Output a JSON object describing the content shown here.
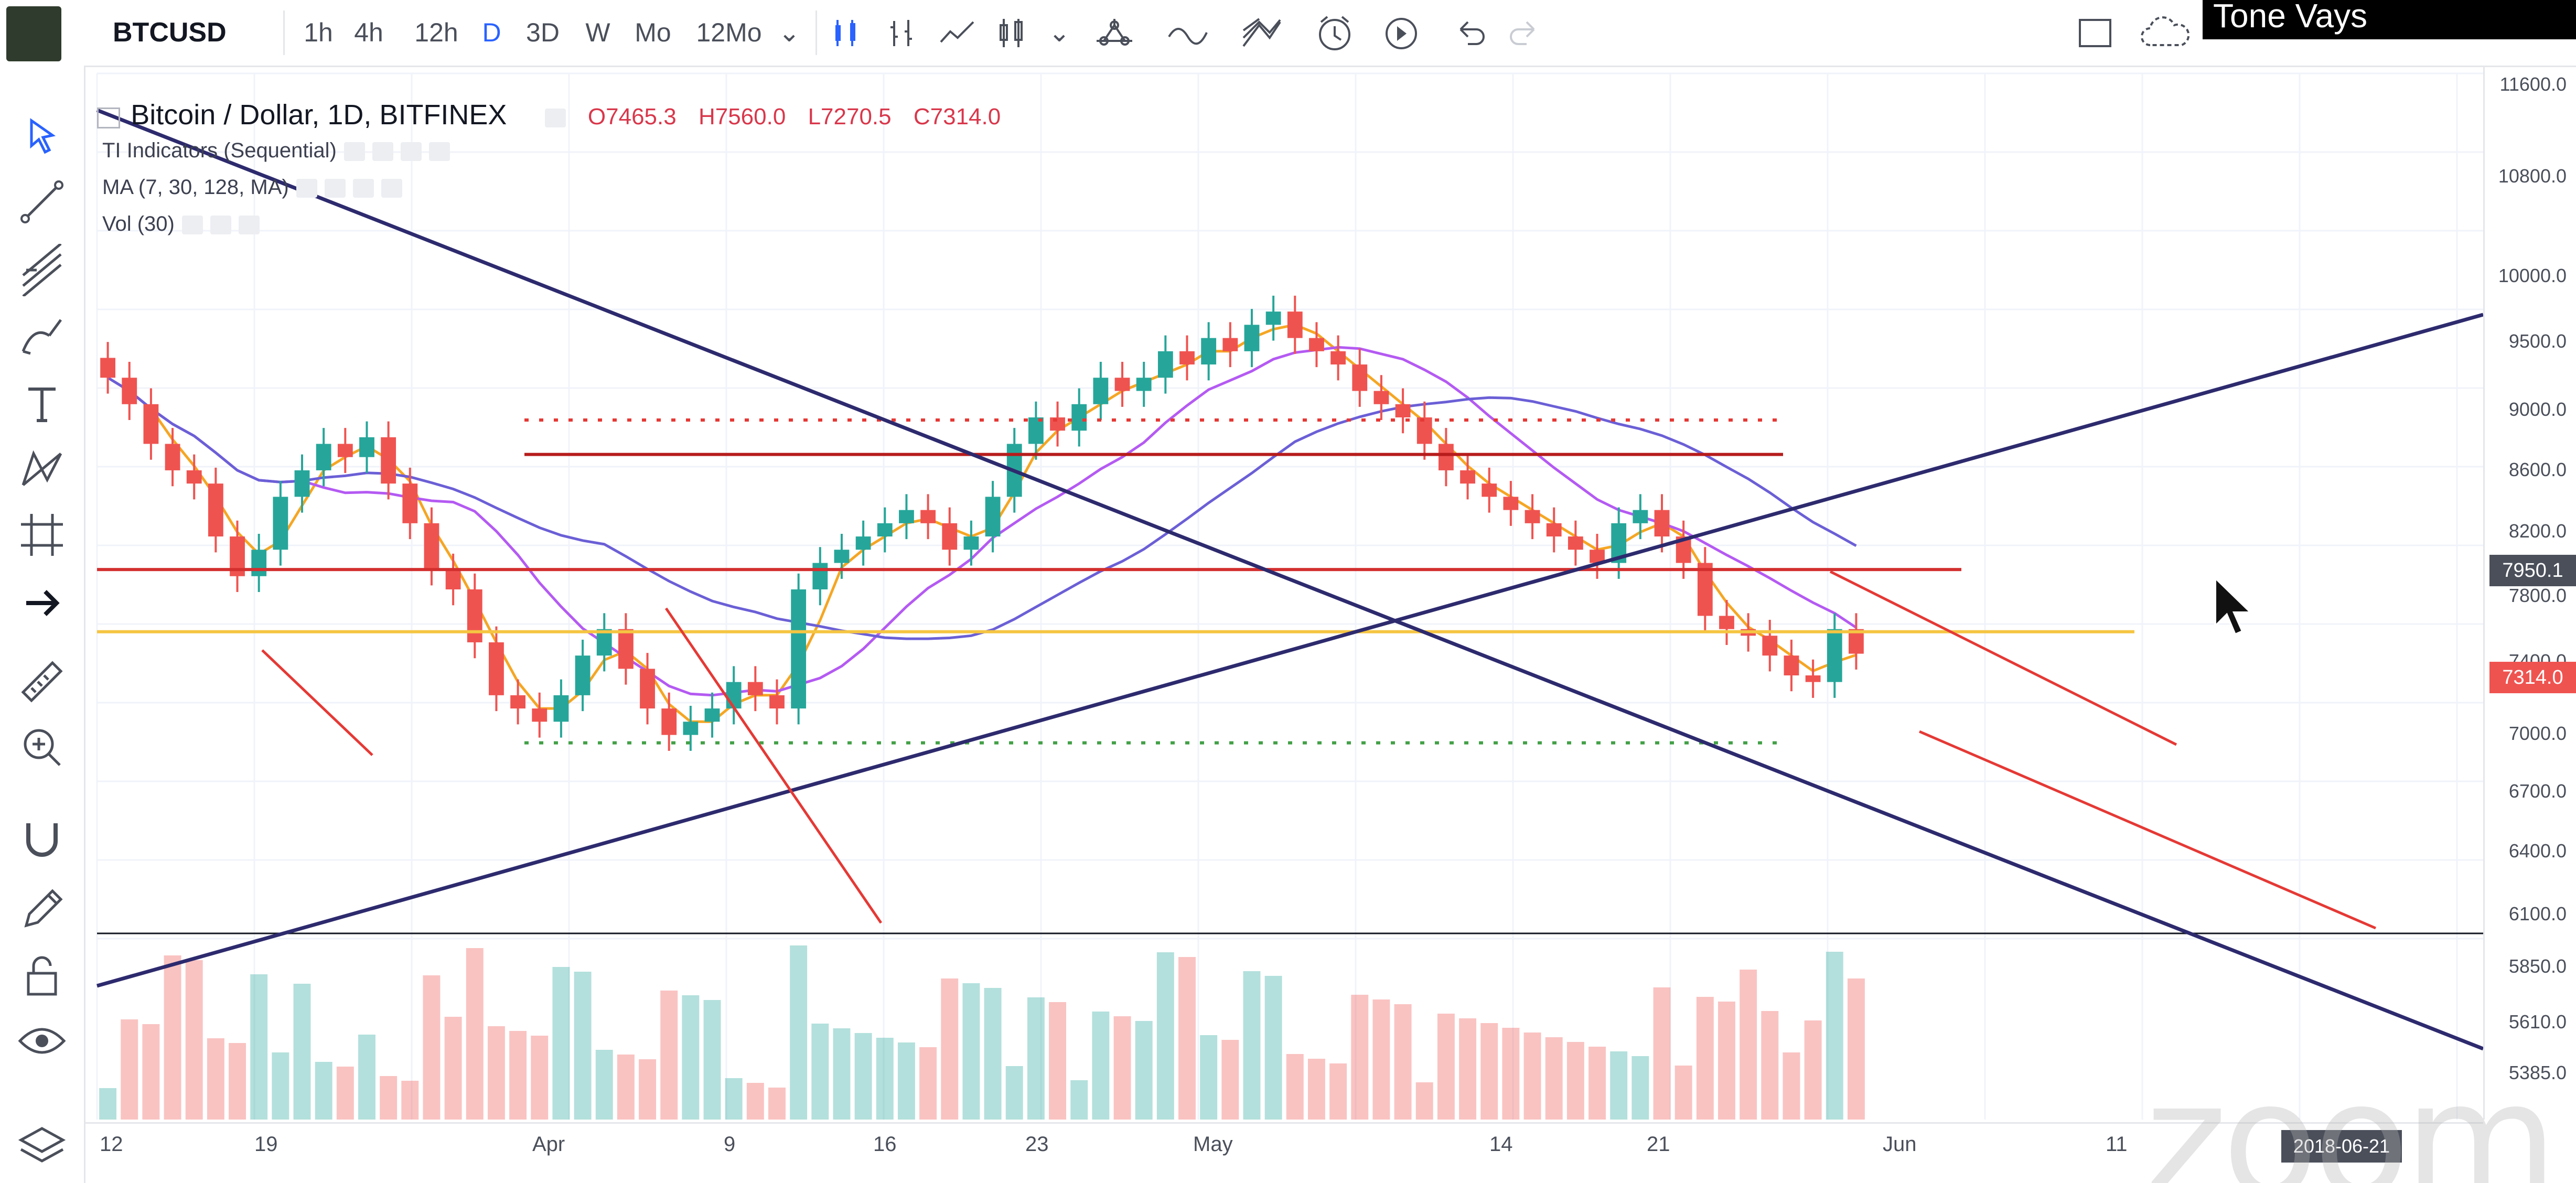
{
  "toolbar": {
    "symbol": "BTCUSD",
    "intervals": [
      "1h",
      "4h",
      "12h",
      "D",
      "3D",
      "W",
      "Mo",
      "12Mo"
    ],
    "active_interval": "D"
  },
  "legend": {
    "title": "Bitcoin / Dollar, 1D, BITFINEX",
    "open": "O7465.3",
    "high": "H7560.0",
    "low": "L7270.5",
    "close": "C7314.0",
    "indicators": [
      "TI Indicators (Sequential)",
      "MA (7, 30, 128, MA)",
      "Vol (30)"
    ]
  },
  "webcam": {
    "name": "Tone Vays"
  },
  "price_axis": {
    "ticks": [
      "11600.0",
      "10800.0",
      "10000.0",
      "9500.0",
      "9000.0",
      "8600.0",
      "8200.0",
      "7800.0",
      "7400.0",
      "7000.0",
      "6700.0",
      "6400.0",
      "6100.0",
      "5850.0",
      "5610.0",
      "5385.0"
    ],
    "badge_level": "7950.1",
    "badge_last": "7314.0"
  },
  "time_axis": {
    "ticks": [
      "12",
      "19",
      "Apr",
      "9",
      "16",
      "23",
      "May",
      "14",
      "21",
      "Jun",
      "11"
    ],
    "date_badge": "2018-06-21"
  },
  "watermark": "zoom",
  "colors": {
    "up": "#26a69a",
    "down": "#ef5350",
    "ma_fast": "#f5a623",
    "ma_mid": "#b45af2",
    "ma_slow": "#6b5fd6",
    "trendline": "#2d2a6e",
    "accent": "#2962ff"
  },
  "chart_data": {
    "type": "candlestick",
    "symbol": "BTCUSD",
    "exchange": "BITFINEX",
    "interval": "1D",
    "last_close": 7314.0,
    "ohlc_last": {
      "open": 7465.3,
      "high": 7560.0,
      "low": 7270.5,
      "close": 7314.0
    },
    "price_range": [
      5200,
      11700
    ],
    "horizontal_levels": [
      7950,
      7480,
      8820,
      9080,
      6640
    ],
    "closes": [
      9400,
      9200,
      8900,
      8700,
      8600,
      8200,
      7900,
      8100,
      8500,
      8700,
      8900,
      8800,
      8950,
      8600,
      8300,
      7950,
      7800,
      7400,
      7000,
      6900,
      6800,
      7000,
      7300,
      7500,
      7200,
      6900,
      6700,
      6800,
      6900,
      7100,
      7000,
      6900,
      7800,
      8000,
      8100,
      8200,
      8300,
      8400,
      8300,
      8100,
      8200,
      8500,
      8900,
      9100,
      9000,
      9200,
      9400,
      9300,
      9400,
      9600,
      9500,
      9700,
      9600,
      9800,
      9900,
      9700,
      9600,
      9500,
      9300,
      9200,
      9100,
      8900,
      8700,
      8600,
      8500,
      8400,
      8300,
      8200,
      8100,
      8000,
      8300,
      8400,
      8200,
      8000,
      7600,
      7500,
      7450,
      7300,
      7150,
      7100,
      7500,
      7314
    ]
  }
}
